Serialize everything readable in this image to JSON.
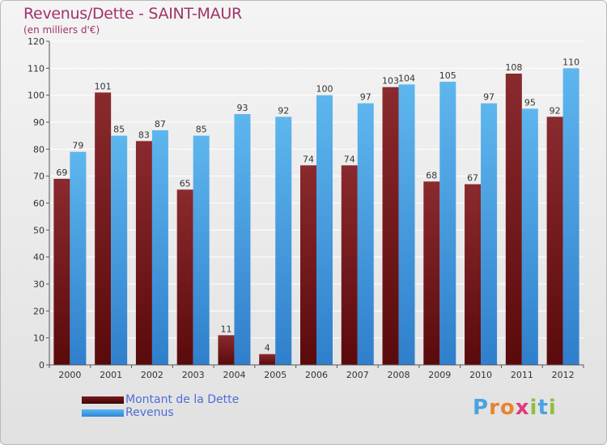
{
  "header": {
    "title": "Revenus/Dette - SAINT-MAUR",
    "subtitle": "(en milliers d'€)"
  },
  "legend": {
    "debt_label": "Montant de la Dette",
    "revenue_label": "Revenus"
  },
  "logo": {
    "letters": [
      "P",
      "r",
      "o",
      "x",
      "i",
      "t",
      "i"
    ],
    "colors": [
      "#4aa3df",
      "#e9832f",
      "#e9832f",
      "#e03a7a",
      "#8fbf3f",
      "#4aa3df",
      "#8fbf3f"
    ]
  },
  "colors": {
    "debt_top": "#8a2a2e",
    "debt_bottom": "#5a0a0c",
    "revenue_top": "#5eb6ee",
    "revenue_bottom": "#2f7fcc",
    "title": "#a0336a"
  },
  "chart_data": {
    "type": "bar",
    "title": "Revenus/Dette - SAINT-MAUR",
    "subtitle": "(en milliers d'€)",
    "categories": [
      "2000",
      "2001",
      "2002",
      "2003",
      "2004",
      "2005",
      "2006",
      "2007",
      "2008",
      "2009",
      "2010",
      "2011",
      "2012"
    ],
    "series": [
      {
        "name": "Montant de la Dette",
        "values": [
          69,
          101,
          83,
          65,
          11,
          4,
          74,
          74,
          103,
          68,
          67,
          108,
          92
        ]
      },
      {
        "name": "Revenus",
        "values": [
          79,
          85,
          87,
          85,
          93,
          92,
          100,
          97,
          104,
          105,
          97,
          95,
          110
        ]
      }
    ],
    "ylim": [
      0,
      120
    ],
    "yticks": [
      0,
      10,
      20,
      30,
      40,
      50,
      60,
      70,
      80,
      90,
      100,
      110,
      120
    ],
    "grid": true,
    "legend_position": "bottom-left"
  }
}
